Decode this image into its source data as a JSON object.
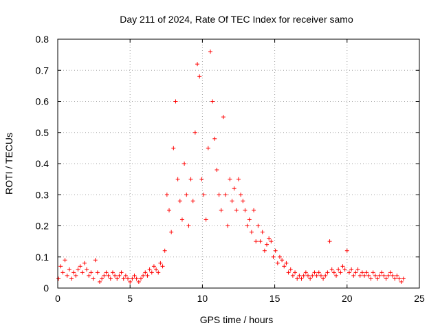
{
  "chart_data": {
    "type": "scatter",
    "title": "Day 211 of 2024, Rate Of TEC Index for receiver samo",
    "xlabel": "GPS time / hours",
    "ylabel": "ROTI / TECUs",
    "xlim": [
      0,
      25
    ],
    "ylim": [
      0,
      0.8
    ],
    "xticks": [
      0,
      5,
      10,
      15,
      20,
      25
    ],
    "xtick_labels": [
      "0",
      "5",
      "10",
      "15",
      "20",
      "25"
    ],
    "yticks": [
      0,
      0.1,
      0.2,
      0.3,
      0.4,
      0.5,
      0.6,
      0.7,
      0.8
    ],
    "ytick_labels": [
      "0",
      "0.1",
      "0.2",
      "0.3",
      "0.4",
      "0.5",
      "0.6",
      "0.7",
      "0.8"
    ],
    "grid": true,
    "marker": "plus",
    "colors": {
      "series": "#ff0000",
      "grid": "#a0a0a0",
      "axis": "#000000"
    },
    "series": [
      {
        "x": [
          0.05,
          0.2,
          0.35,
          0.5,
          0.65,
          0.8,
          0.95,
          1.1,
          1.25,
          1.4,
          1.55,
          1.7,
          1.85,
          2.0,
          2.15,
          2.3,
          2.45,
          2.6,
          2.75,
          2.9,
          3.05,
          3.2,
          3.35,
          3.5,
          3.65,
          3.8,
          3.95,
          4.1,
          4.25,
          4.4,
          4.55,
          4.7,
          4.85,
          5.0,
          5.15,
          5.3,
          5.45,
          5.6,
          5.75,
          5.9,
          6.05,
          6.2,
          6.35,
          6.5,
          6.65,
          6.8,
          6.95,
          7.1,
          7.25,
          7.4,
          7.55,
          7.7,
          7.85,
          8.0,
          8.15,
          8.3,
          8.45,
          8.6,
          8.75,
          8.9,
          9.05,
          9.2,
          9.35,
          9.5,
          9.65,
          9.8,
          9.95,
          10.1,
          10.25,
          10.4,
          10.55,
          10.7,
          10.85,
          11.0,
          11.15,
          11.3,
          11.45,
          11.6,
          11.75,
          11.9,
          12.05,
          12.2,
          12.35,
          12.5,
          12.65,
          12.8,
          12.95,
          13.1,
          13.25,
          13.4,
          13.55,
          13.7,
          13.85,
          14.0,
          14.15,
          14.3,
          14.45,
          14.6,
          14.75,
          14.9,
          15.05,
          15.2,
          15.35,
          15.5,
          15.65,
          15.8,
          15.95,
          16.1,
          16.25,
          16.4,
          16.55,
          16.7,
          16.85,
          17.0,
          17.15,
          17.3,
          17.45,
          17.6,
          17.75,
          17.9,
          18.05,
          18.2,
          18.35,
          18.5,
          18.65,
          18.8,
          18.95,
          19.1,
          19.25,
          19.4,
          19.55,
          19.7,
          19.85,
          20.0,
          20.15,
          20.3,
          20.45,
          20.6,
          20.75,
          20.9,
          21.05,
          21.2,
          21.35,
          21.5,
          21.65,
          21.8,
          21.95,
          22.1,
          22.25,
          22.4,
          22.55,
          22.7,
          22.85,
          23.0,
          23.15,
          23.3,
          23.45,
          23.6,
          23.75,
          23.9
        ],
        "y": [
          0.03,
          0.07,
          0.05,
          0.09,
          0.04,
          0.06,
          0.03,
          0.05,
          0.04,
          0.06,
          0.07,
          0.05,
          0.08,
          0.06,
          0.04,
          0.05,
          0.03,
          0.09,
          0.05,
          0.02,
          0.03,
          0.04,
          0.05,
          0.04,
          0.03,
          0.05,
          0.04,
          0.03,
          0.04,
          0.05,
          0.03,
          0.04,
          0.03,
          0.02,
          0.03,
          0.04,
          0.03,
          0.02,
          0.03,
          0.04,
          0.05,
          0.04,
          0.06,
          0.05,
          0.07,
          0.06,
          0.05,
          0.08,
          0.07,
          0.12,
          0.3,
          0.25,
          0.18,
          0.45,
          0.6,
          0.35,
          0.28,
          0.22,
          0.4,
          0.3,
          0.2,
          0.35,
          0.28,
          0.5,
          0.72,
          0.68,
          0.35,
          0.3,
          0.22,
          0.45,
          0.76,
          0.6,
          0.48,
          0.38,
          0.3,
          0.25,
          0.55,
          0.3,
          0.2,
          0.35,
          0.28,
          0.32,
          0.25,
          0.35,
          0.3,
          0.28,
          0.25,
          0.2,
          0.22,
          0.18,
          0.25,
          0.15,
          0.2,
          0.15,
          0.18,
          0.12,
          0.14,
          0.16,
          0.15,
          0.1,
          0.12,
          0.08,
          0.1,
          0.09,
          0.07,
          0.08,
          0.05,
          0.06,
          0.04,
          0.05,
          0.03,
          0.04,
          0.03,
          0.04,
          0.05,
          0.04,
          0.03,
          0.04,
          0.05,
          0.04,
          0.05,
          0.04,
          0.03,
          0.04,
          0.05,
          0.15,
          0.06,
          0.05,
          0.04,
          0.06,
          0.05,
          0.07,
          0.06,
          0.12,
          0.05,
          0.06,
          0.04,
          0.05,
          0.06,
          0.04,
          0.05,
          0.04,
          0.05,
          0.04,
          0.03,
          0.05,
          0.04,
          0.03,
          0.04,
          0.05,
          0.04,
          0.03,
          0.04,
          0.05,
          0.04,
          0.03,
          0.04,
          0.03,
          0.02,
          0.03
        ]
      }
    ]
  }
}
